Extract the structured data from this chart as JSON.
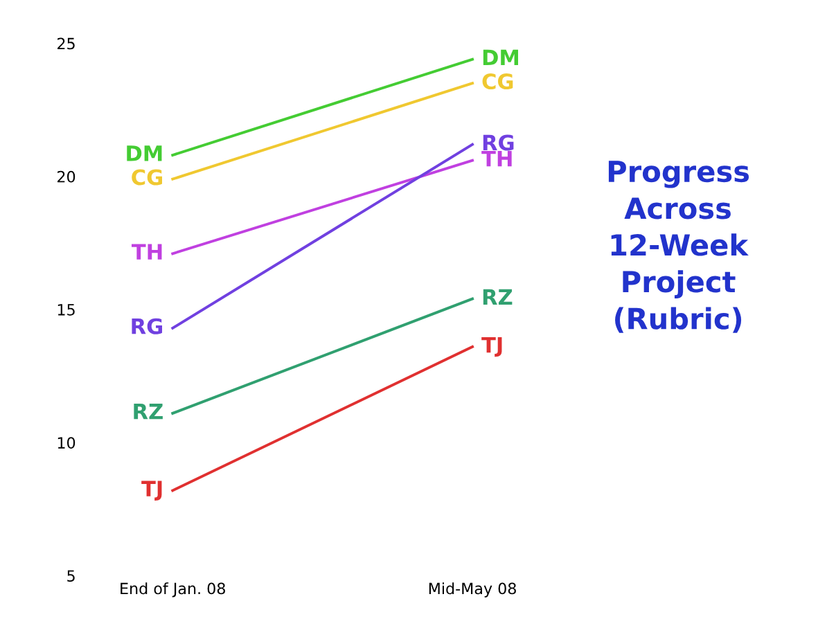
{
  "chart_data": {
    "type": "line",
    "title": "Progress\nAcross\n12-Week\nProject\n(Rubric)",
    "categories": [
      "End of Jan. 08",
      "Mid-May 08"
    ],
    "series": [
      {
        "name": "DM",
        "color": "#44cc33",
        "values": [
          20.8,
          24.4
        ]
      },
      {
        "name": "CG",
        "color": "#f0c830",
        "values": [
          19.9,
          23.5
        ]
      },
      {
        "name": "TH",
        "color": "#c040e0",
        "values": [
          17.1,
          20.6
        ]
      },
      {
        "name": "RG",
        "color": "#7040e0",
        "values": [
          14.3,
          21.2
        ]
      },
      {
        "name": "RZ",
        "color": "#30a070",
        "values": [
          11.1,
          15.4
        ]
      },
      {
        "name": "TJ",
        "color": "#e03030",
        "values": [
          8.2,
          13.6
        ]
      }
    ],
    "ylim": [
      5,
      25
    ],
    "yticks": [
      5,
      10,
      15,
      20,
      25
    ],
    "grid": false,
    "legend": false,
    "marker": "none",
    "line_style": "solid"
  }
}
